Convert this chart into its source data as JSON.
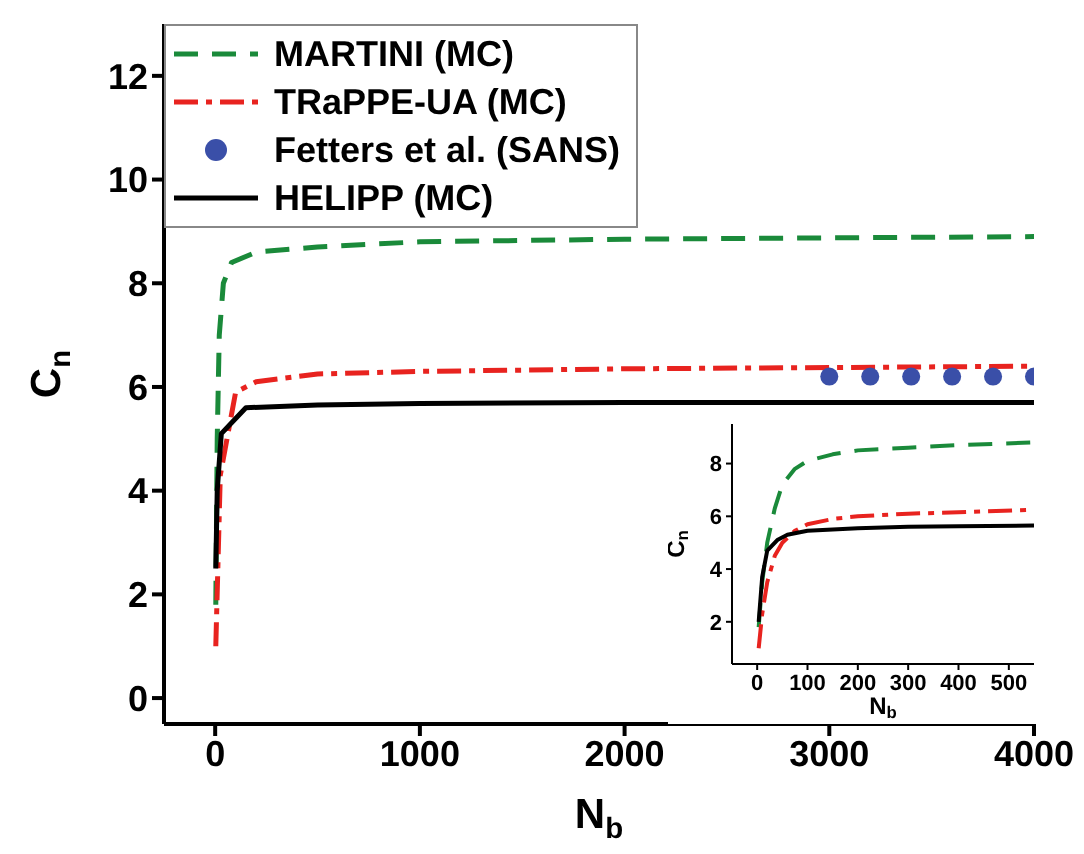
{
  "chart_data": [
    {
      "type": "line",
      "xlabel": "N$_{b}$",
      "ylabel": "C$_{n}$",
      "xlim": [
        -250,
        4000
      ],
      "ylim": [
        -0.5,
        13
      ],
      "xticks": [
        0,
        1000,
        2000,
        3000,
        4000
      ],
      "yticks": [
        0,
        2,
        4,
        6,
        8,
        10,
        12
      ],
      "grid": false,
      "legend": "top left",
      "series": [
        {
          "name": "MARTINI (MC)",
          "type": "line",
          "color": "#1a8a3a",
          "line_style": "dashed",
          "marker": "none",
          "x": [
            3,
            10,
            20,
            40,
            80,
            200,
            500,
            1000,
            2000,
            4000
          ],
          "values": [
            1.8,
            5,
            7,
            8,
            8.4,
            8.6,
            8.7,
            8.8,
            8.85,
            8.9
          ]
        },
        {
          "name": "TRaPPE-UA (MC)",
          "type": "line",
          "color": "#e8231f",
          "line_style": "dashdot",
          "marker": "none",
          "x": [
            3,
            25,
            100,
            200,
            500,
            1000,
            2000,
            4000
          ],
          "values": [
            1,
            4.3,
            5.9,
            6.1,
            6.25,
            6.3,
            6.35,
            6.4
          ]
        },
        {
          "name": "Fetters et al. (SANS)",
          "type": "scatter",
          "color": "#3a4fa8",
          "marker": "circle",
          "x": [
            3000,
            3200,
            3400,
            3600,
            3800,
            4000
          ],
          "values": [
            6.2,
            6.2,
            6.2,
            6.2,
            6.2,
            6.2
          ]
        },
        {
          "name": "HELIPP (MC)",
          "type": "line",
          "color": "#000000",
          "line_style": "solid",
          "marker": "none",
          "x": [
            3,
            10,
            30,
            150,
            500,
            1000,
            2000,
            4000
          ],
          "values": [
            2.5,
            4,
            5.1,
            5.6,
            5.65,
            5.68,
            5.7,
            5.7
          ]
        }
      ]
    },
    {
      "type": "line",
      "xlabel": "N$_{b}$",
      "ylabel": "C$_{n}$",
      "xlim": [
        -50,
        550
      ],
      "ylim": [
        0.4,
        9.5
      ],
      "xticks": [
        0,
        100,
        200,
        300,
        400,
        500
      ],
      "yticks": [
        2,
        4,
        6,
        8
      ],
      "grid": false,
      "series": [
        {
          "type": "line",
          "color": "#1a8a3a",
          "line_style": "dashed",
          "marker": "none",
          "x": [
            3,
            10,
            20,
            35,
            50,
            75,
            100,
            150,
            200,
            300,
            400,
            550
          ],
          "values": [
            1.8,
            3.5,
            5,
            6.3,
            7.2,
            7.8,
            8.1,
            8.35,
            8.5,
            8.6,
            8.7,
            8.8
          ]
        },
        {
          "type": "line",
          "color": "#e8231f",
          "line_style": "dashdot",
          "marker": "none",
          "x": [
            3,
            10,
            20,
            35,
            50,
            75,
            100,
            150,
            200,
            300,
            400,
            550
          ],
          "values": [
            1,
            2.3,
            3.5,
            4.5,
            5.0,
            5.45,
            5.7,
            5.9,
            6.0,
            6.1,
            6.15,
            6.25
          ]
        },
        {
          "type": "line",
          "color": "#000000",
          "line_style": "solid",
          "marker": "none",
          "x": [
            3,
            10,
            20,
            40,
            60,
            100,
            150,
            200,
            300,
            400,
            550
          ],
          "values": [
            2,
            3.7,
            4.7,
            5.1,
            5.3,
            5.45,
            5.5,
            5.55,
            5.6,
            5.62,
            5.65
          ]
        }
      ]
    }
  ]
}
